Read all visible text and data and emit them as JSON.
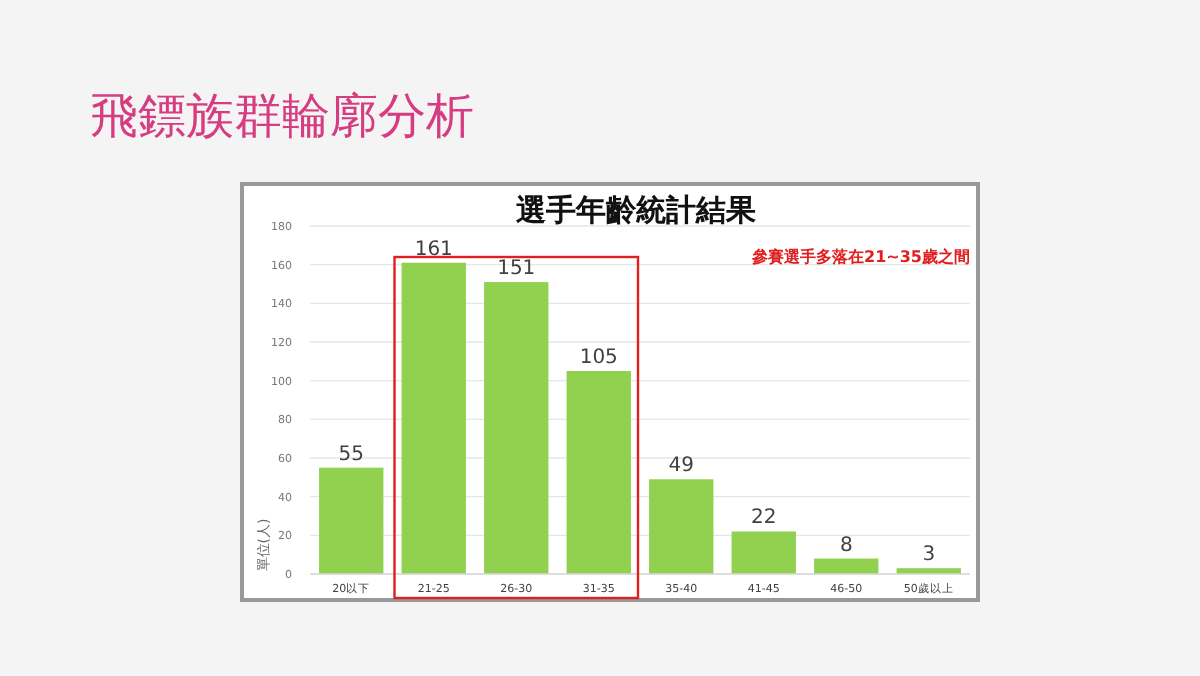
{
  "chart_data": {
    "type": "bar",
    "title": "選手年齡統計結果",
    "subtitle": "飛鏢族群輪廓分析",
    "ylabel": "單位(人)",
    "categories": [
      "20以下",
      "21-25",
      "26-30",
      "31-35",
      "35-40",
      "41-45",
      "46-50",
      "50歲以上"
    ],
    "values": [
      55,
      161,
      151,
      105,
      49,
      22,
      8,
      3
    ],
    "color": "#92d050",
    "ylim": [
      0,
      180
    ],
    "yticks": [
      0,
      20,
      40,
      60,
      80,
      100,
      120,
      140,
      160,
      180
    ],
    "grid": "y",
    "data_labels": true,
    "annotations": [
      "參賽選手多落在21~35歲之間"
    ]
  }
}
